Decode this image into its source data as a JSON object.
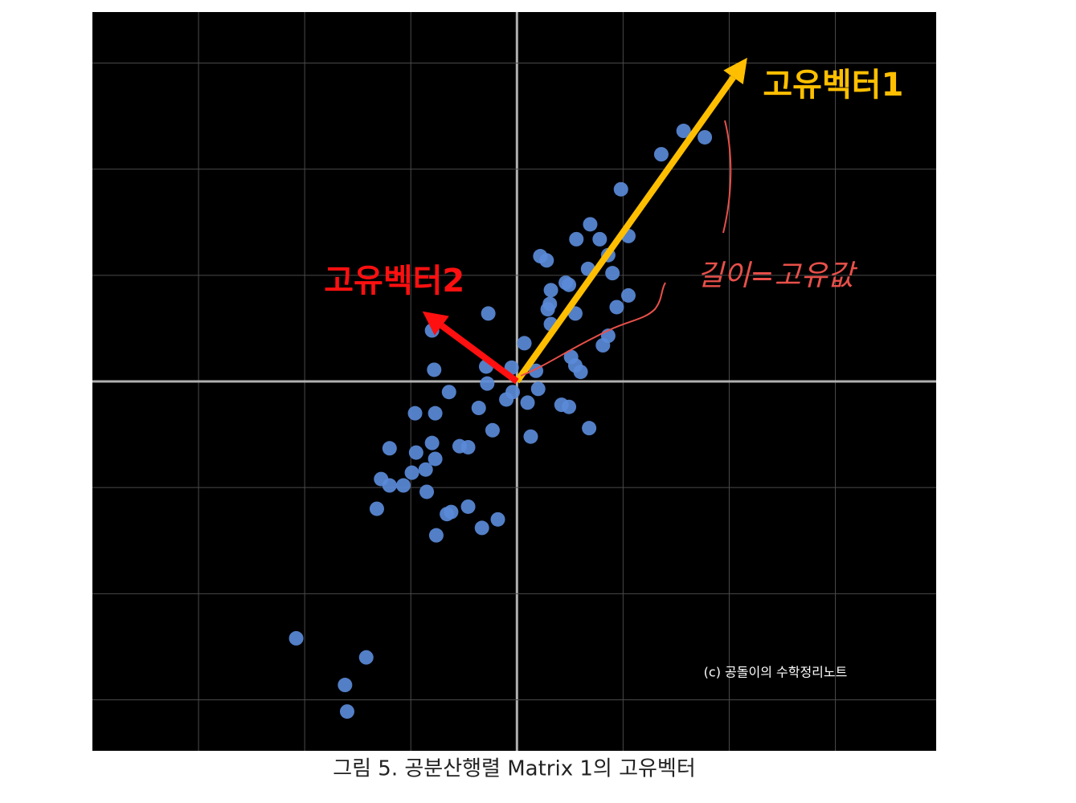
{
  "chart_data": {
    "type": "scatter",
    "caption": "그림 5. 공분산행렬 Matrix 1의 고유벡터",
    "watermark": "(c) 공돌이의 수학정리노트",
    "annotation": "길이=고유값",
    "xlim": [
      -4,
      3.95
    ],
    "ylim": [
      -3.48,
      3.48
    ],
    "gridlines": {
      "x": [
        -3,
        -2,
        -1,
        0,
        1,
        2,
        3
      ],
      "y": [
        -3,
        -2,
        -1,
        0,
        1,
        2,
        3
      ]
    },
    "background": "#000000",
    "grid_color": "#4a4a4a",
    "axis_color": "#b0b0b0",
    "point_color": "#5a8ad8",
    "x": [
      1.57,
      1.77,
      1.36,
      0.98,
      0.69,
      0.56,
      0.78,
      1.05,
      0.86,
      0.22,
      0.28,
      0.67,
      0.9,
      0.46,
      0.49,
      0.32,
      1.05,
      0.31,
      0.29,
      0.94,
      0.55,
      -0.27,
      0.32,
      0.86,
      0.81,
      0.07,
      -0.8,
      0.51,
      0.55,
      0.6,
      -0.78,
      -0.29,
      -0.05,
      0.18,
      -0.28,
      -0.04,
      0.2,
      -0.64,
      -0.1,
      0.1,
      0.42,
      0.49,
      -0.36,
      -0.96,
      -0.77,
      -0.23,
      0.68,
      0.13,
      -0.8,
      -0.54,
      -0.46,
      -1.2,
      -0.95,
      -0.77,
      -0.86,
      -0.99,
      -1.28,
      -1.07,
      -1.2,
      -0.85,
      -1.32,
      -0.62,
      -0.66,
      -0.46,
      -0.18,
      -0.33,
      -0.76,
      -2.08,
      -1.42,
      -1.62,
      -1.6
    ],
    "y": [
      2.36,
      2.3,
      2.14,
      1.81,
      1.48,
      1.34,
      1.34,
      1.37,
      1.19,
      1.18,
      1.14,
      1.06,
      1.02,
      0.93,
      0.91,
      0.86,
      0.81,
      0.73,
      0.68,
      0.7,
      0.64,
      0.64,
      0.54,
      0.43,
      0.34,
      0.36,
      0.48,
      0.23,
      0.15,
      0.09,
      0.11,
      0.14,
      0.13,
      0.1,
      -0.02,
      -0.1,
      -0.07,
      -0.1,
      -0.17,
      -0.2,
      -0.22,
      -0.24,
      -0.25,
      -0.3,
      -0.3,
      -0.46,
      -0.44,
      -0.52,
      -0.58,
      -0.61,
      -0.62,
      -0.63,
      -0.67,
      -0.73,
      -0.83,
      -0.86,
      -0.92,
      -0.98,
      -0.98,
      -1.04,
      -1.2,
      -1.23,
      -1.25,
      -1.18,
      -1.3,
      -1.38,
      -1.45,
      -2.42,
      -2.6,
      -2.86,
      -3.11
    ],
    "vectors": [
      {
        "name": "고유벡터1",
        "color": "#ffbf00",
        "x": 2.17,
        "y": 3.05
      },
      {
        "name": "고유벡터2",
        "color": "#ff1010",
        "x": -0.89,
        "y": 0.66
      }
    ]
  }
}
